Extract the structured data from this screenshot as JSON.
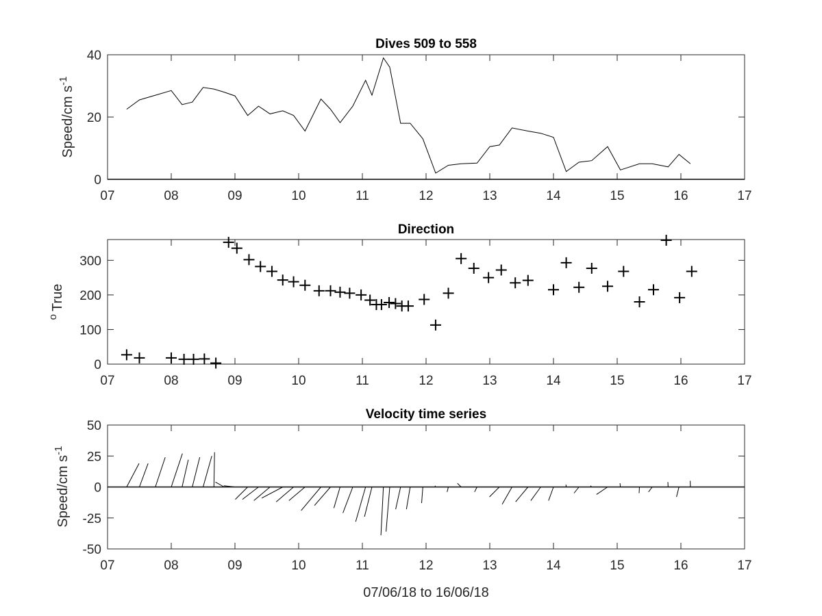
{
  "chart_data": [
    {
      "type": "line",
      "title": "Dives 509 to 558",
      "ylabel": "Speed/cm s",
      "ylabel_exponent": "-1",
      "xlim": [
        7,
        17
      ],
      "ylim": [
        0,
        40
      ],
      "x_ticks": [
        7,
        8,
        9,
        10,
        11,
        12,
        13,
        14,
        15,
        16,
        17
      ],
      "x_tick_labels": [
        "07",
        "08",
        "09",
        "10",
        "11",
        "12",
        "13",
        "14",
        "15",
        "16",
        "17"
      ],
      "y_ticks": [
        0,
        20,
        40
      ],
      "y_tick_labels": [
        "0",
        "20",
        "40"
      ],
      "grid": false,
      "x": [
        7.3,
        7.5,
        7.75,
        8.0,
        8.17,
        8.33,
        8.5,
        8.67,
        8.83,
        9.0,
        9.2,
        9.37,
        9.55,
        9.75,
        9.92,
        10.1,
        10.35,
        10.5,
        10.65,
        10.85,
        11.05,
        11.15,
        11.33,
        11.43,
        11.6,
        11.75,
        11.95,
        12.15,
        12.35,
        12.55,
        12.8,
        13.0,
        13.15,
        13.35,
        13.6,
        13.8,
        14.0,
        14.2,
        14.4,
        14.6,
        14.85,
        15.05,
        15.35,
        15.55,
        15.8,
        15.97,
        16.15
      ],
      "y": [
        22.5,
        25.5,
        27,
        28.5,
        24,
        24.8,
        29.5,
        29,
        28,
        26.8,
        20.5,
        23.5,
        21,
        22,
        20.5,
        15.5,
        25.8,
        22.5,
        18.2,
        23.5,
        31.8,
        27,
        39,
        36,
        18,
        18,
        13,
        2,
        4.5,
        5,
        5.2,
        10.5,
        11,
        16.5,
        15.5,
        14.8,
        13.5,
        2.5,
        5.5,
        6,
        10.5,
        3,
        5,
        5,
        4,
        8,
        5
      ]
    },
    {
      "type": "scatter",
      "title": "Direction",
      "ylabel": "True",
      "ylabel_prefix": "o",
      "xlim": [
        7,
        17
      ],
      "ylim": [
        0,
        360
      ],
      "x_ticks": [
        7,
        8,
        9,
        10,
        11,
        12,
        13,
        14,
        15,
        16,
        17
      ],
      "x_tick_labels": [
        "07",
        "08",
        "09",
        "10",
        "11",
        "12",
        "13",
        "14",
        "15",
        "16",
        "17"
      ],
      "y_ticks": [
        0,
        100,
        200,
        300
      ],
      "y_tick_labels": [
        "0",
        "100",
        "200",
        "300"
      ],
      "grid": false,
      "marker": "+",
      "x": [
        7.3,
        7.5,
        8.0,
        8.2,
        8.35,
        8.52,
        8.7,
        8.9,
        9.03,
        9.22,
        9.4,
        9.58,
        9.75,
        9.92,
        10.1,
        10.32,
        10.5,
        10.65,
        10.8,
        10.98,
        11.12,
        11.22,
        11.3,
        11.42,
        11.52,
        11.62,
        11.72,
        11.97,
        12.15,
        12.35,
        12.55,
        12.75,
        12.98,
        13.18,
        13.4,
        13.6,
        14.0,
        14.2,
        14.4,
        14.6,
        14.85,
        15.1,
        15.35,
        15.57,
        15.77,
        15.98,
        16.17
      ],
      "y": [
        27,
        18,
        18,
        14,
        14,
        15,
        3,
        352,
        335,
        302,
        282,
        268,
        243,
        238,
        228,
        212,
        212,
        208,
        205,
        200,
        185,
        172,
        172,
        178,
        175,
        168,
        168,
        187,
        113,
        205,
        305,
        277,
        250,
        272,
        235,
        242,
        215,
        293,
        222,
        277,
        225,
        268,
        180,
        215,
        358,
        192,
        268
      ]
    },
    {
      "type": "stick",
      "title": "Velocity time series",
      "ylabel": "Speed/cm s",
      "ylabel_exponent": "-1",
      "xlabel": "07/06/18 to 16/06/18",
      "xlim": [
        7,
        17
      ],
      "ylim": [
        -50,
        50
      ],
      "x_ticks": [
        7,
        8,
        9,
        10,
        11,
        12,
        13,
        14,
        15,
        16,
        17
      ],
      "x_tick_labels": [
        "07",
        "08",
        "09",
        "10",
        "11",
        "12",
        "13",
        "14",
        "15",
        "16",
        "17"
      ],
      "y_ticks": [
        -50,
        -25,
        0,
        25,
        50
      ],
      "y_tick_labels": [
        "-50",
        "-25",
        "0",
        "25",
        "50"
      ],
      "grid": false,
      "x": [
        7.3,
        7.5,
        7.75,
        8.0,
        8.17,
        8.33,
        8.5,
        8.67,
        8.83,
        9.0,
        9.2,
        9.37,
        9.55,
        9.75,
        9.92,
        10.1,
        10.35,
        10.5,
        10.65,
        10.85,
        11.05,
        11.15,
        11.33,
        11.43,
        11.6,
        11.75,
        11.95,
        12.15,
        12.35,
        12.55,
        12.8,
        13.0,
        13.15,
        13.35,
        13.6,
        13.8,
        14.0,
        14.2,
        14.4,
        14.6,
        14.85,
        15.05,
        15.35,
        15.55,
        15.8,
        15.97,
        16.15
      ],
      "u": [
        10,
        7,
        8,
        9,
        5,
        6,
        7,
        0.5,
        -7,
        -9,
        -10,
        -13,
        -13,
        -17,
        -14,
        -13,
        -16,
        -13,
        -5,
        -8,
        -8,
        -6,
        -2,
        -3,
        -4,
        -3,
        -1,
        -0.5,
        -1,
        -3,
        -2,
        -6,
        -8,
        -8,
        -10,
        -8,
        -4,
        -0.2,
        -4,
        -1,
        -9,
        -0.3,
        -0.3,
        -3,
        -0.2,
        -2,
        -0.2
      ],
      "v": [
        19,
        19,
        24,
        27,
        22,
        24,
        25,
        28,
        4,
        1,
        -10,
        -10,
        -11,
        -9,
        -12,
        -11,
        -19,
        -15,
        -17,
        -21,
        -28,
        -24,
        -39,
        -36,
        -18,
        -18,
        -13,
        1,
        -4,
        3,
        -4,
        0,
        -8,
        -14,
        -12,
        -11,
        -11,
        2,
        -5,
        1,
        -6,
        3,
        -5,
        -4,
        4,
        -8,
        5
      ]
    }
  ]
}
